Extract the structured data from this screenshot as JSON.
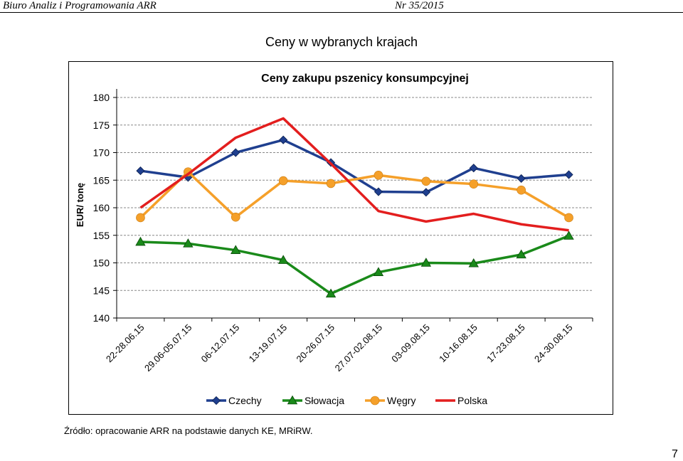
{
  "header": {
    "left": "Biuro Analiz i Programowania ARR",
    "right": "Nr 35/2015"
  },
  "section_title": "Ceny w wybranych krajach",
  "source": "Źródło: opracowanie ARR na podstawie danych KE, MRiRW.",
  "page_number": "7",
  "chart_data": {
    "type": "line",
    "title": "Ceny zakupu pszenicy konsumpcyjnej",
    "ylabel": "EUR/ tonę",
    "xlabel": "",
    "ylim": [
      140,
      180
    ],
    "yticks": [
      140,
      145,
      150,
      155,
      160,
      165,
      170,
      175,
      180
    ],
    "grid": "horizontal-dashed",
    "legend": "bottom",
    "categories": [
      "22-28.06.15",
      "29.06-05.07.15",
      "06-12.07.15",
      "13-19.07.15",
      "20-26.07.15",
      "27.07-02.08.15",
      "03-09.08.15",
      "10-16.08.15",
      "17-23.08.15",
      "24-30.08.15"
    ],
    "series": [
      {
        "name": "Czechy",
        "color": "#1f3f8f",
        "marker": "diamond",
        "values": [
          166.7,
          165.5,
          170.0,
          172.3,
          168.2,
          162.9,
          162.8,
          167.2,
          165.3,
          166.0
        ]
      },
      {
        "name": "Słowacja",
        "color": "#1a8a1a",
        "marker": "triangle",
        "values": [
          153.8,
          153.5,
          152.3,
          150.5,
          144.4,
          148.3,
          150.0,
          149.9,
          151.5,
          154.9
        ]
      },
      {
        "name": "Węgry",
        "color": "#f5a02a",
        "marker": "circle",
        "values": [
          158.2,
          166.5,
          158.3,
          164.9,
          164.4,
          165.9,
          164.8,
          164.3,
          163.2,
          158.2
        ]
      },
      {
        "name": "Polska",
        "color": "#e31e1e",
        "marker": "none",
        "values": [
          160.0,
          166.1,
          172.7,
          176.2,
          168.0,
          159.4,
          157.5,
          158.9,
          157.0,
          155.9
        ]
      }
    ]
  }
}
